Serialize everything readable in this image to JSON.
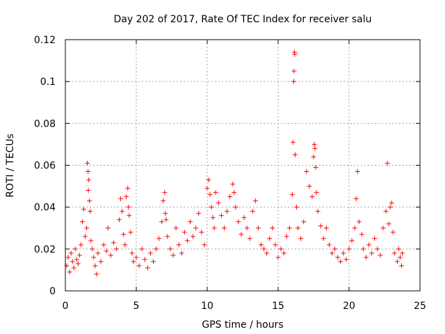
{
  "chart_data": {
    "type": "scatter",
    "title": "Day 202 of 2017, Rate Of TEC Index for receiver salu",
    "xlabel": "GPS time / hours",
    "ylabel": "ROTI / TECUs",
    "xlim": [
      0,
      25
    ],
    "ylim": [
      0,
      0.12
    ],
    "xticks": [
      0,
      5,
      10,
      15,
      20,
      25
    ],
    "xtick_labels": [
      "0",
      "5",
      "10",
      "15",
      "20",
      "25"
    ],
    "yticks": [
      0,
      0.02,
      0.04,
      0.06,
      0.08,
      0.1,
      0.12
    ],
    "ytick_labels": [
      "0",
      "0.02",
      "0.04",
      "0.06",
      "0.08",
      "0.1",
      "0.12"
    ],
    "grid": true,
    "marker": "+",
    "color": "#ff0000",
    "series": [
      {
        "name": "ROTI",
        "points": [
          [
            0.1,
            0.012
          ],
          [
            0.2,
            0.016
          ],
          [
            0.3,
            0.009
          ],
          [
            0.4,
            0.018
          ],
          [
            0.5,
            0.014
          ],
          [
            0.6,
            0.011
          ],
          [
            0.7,
            0.02
          ],
          [
            0.8,
            0.015
          ],
          [
            0.9,
            0.013
          ],
          [
            1.0,
            0.017
          ],
          [
            1.1,
            0.022
          ],
          [
            1.2,
            0.033
          ],
          [
            1.3,
            0.039
          ],
          [
            1.4,
            0.026
          ],
          [
            1.5,
            0.03
          ],
          [
            1.55,
            0.061
          ],
          [
            1.6,
            0.057
          ],
          [
            1.62,
            0.048
          ],
          [
            1.65,
            0.053
          ],
          [
            1.7,
            0.043
          ],
          [
            1.75,
            0.038
          ],
          [
            1.8,
            0.024
          ],
          [
            1.9,
            0.02
          ],
          [
            2.0,
            0.016
          ],
          [
            2.1,
            0.012
          ],
          [
            2.2,
            0.008
          ],
          [
            2.3,
            0.018
          ],
          [
            2.5,
            0.014
          ],
          [
            2.7,
            0.022
          ],
          [
            2.9,
            0.019
          ],
          [
            3.0,
            0.03
          ],
          [
            3.2,
            0.017
          ],
          [
            3.4,
            0.023
          ],
          [
            3.6,
            0.02
          ],
          [
            3.8,
            0.034
          ],
          [
            3.9,
            0.044
          ],
          [
            4.0,
            0.038
          ],
          [
            4.1,
            0.027
          ],
          [
            4.2,
            0.022
          ],
          [
            4.3,
            0.045
          ],
          [
            4.4,
            0.049
          ],
          [
            4.45,
            0.04
          ],
          [
            4.5,
            0.036
          ],
          [
            4.6,
            0.028
          ],
          [
            4.7,
            0.018
          ],
          [
            4.8,
            0.014
          ],
          [
            5.0,
            0.016
          ],
          [
            5.2,
            0.012
          ],
          [
            5.4,
            0.02
          ],
          [
            5.6,
            0.015
          ],
          [
            5.8,
            0.011
          ],
          [
            6.0,
            0.018
          ],
          [
            6.2,
            0.014
          ],
          [
            6.4,
            0.02
          ],
          [
            6.6,
            0.025
          ],
          [
            6.8,
            0.033
          ],
          [
            6.9,
            0.043
          ],
          [
            7.0,
            0.047
          ],
          [
            7.05,
            0.037
          ],
          [
            7.1,
            0.034
          ],
          [
            7.2,
            0.026
          ],
          [
            7.4,
            0.02
          ],
          [
            7.6,
            0.017
          ],
          [
            7.8,
            0.03
          ],
          [
            8.0,
            0.022
          ],
          [
            8.2,
            0.018
          ],
          [
            8.4,
            0.028
          ],
          [
            8.6,
            0.024
          ],
          [
            8.8,
            0.033
          ],
          [
            9.0,
            0.026
          ],
          [
            9.2,
            0.03
          ],
          [
            9.4,
            0.037
          ],
          [
            9.6,
            0.028
          ],
          [
            9.8,
            0.022
          ],
          [
            10.0,
            0.049
          ],
          [
            10.1,
            0.053
          ],
          [
            10.2,
            0.046
          ],
          [
            10.3,
            0.04
          ],
          [
            10.4,
            0.035
          ],
          [
            10.5,
            0.03
          ],
          [
            10.6,
            0.047
          ],
          [
            10.8,
            0.042
          ],
          [
            11.0,
            0.036
          ],
          [
            11.2,
            0.03
          ],
          [
            11.4,
            0.038
          ],
          [
            11.6,
            0.045
          ],
          [
            11.8,
            0.051
          ],
          [
            11.9,
            0.047
          ],
          [
            12.0,
            0.04
          ],
          [
            12.2,
            0.033
          ],
          [
            12.4,
            0.027
          ],
          [
            12.6,
            0.035
          ],
          [
            12.8,
            0.03
          ],
          [
            13.0,
            0.025
          ],
          [
            13.2,
            0.038
          ],
          [
            13.4,
            0.043
          ],
          [
            13.6,
            0.03
          ],
          [
            13.8,
            0.022
          ],
          [
            14.0,
            0.02
          ],
          [
            14.2,
            0.018
          ],
          [
            14.4,
            0.025
          ],
          [
            14.6,
            0.03
          ],
          [
            14.8,
            0.022
          ],
          [
            15.0,
            0.016
          ],
          [
            15.2,
            0.02
          ],
          [
            15.4,
            0.018
          ],
          [
            15.6,
            0.026
          ],
          [
            15.8,
            0.03
          ],
          [
            16.0,
            0.046
          ],
          [
            16.05,
            0.071
          ],
          [
            16.1,
            0.1
          ],
          [
            16.12,
            0.105
          ],
          [
            16.15,
            0.114
          ],
          [
            16.17,
            0.113
          ],
          [
            16.2,
            0.065
          ],
          [
            16.3,
            0.04
          ],
          [
            16.4,
            0.03
          ],
          [
            16.6,
            0.025
          ],
          [
            16.8,
            0.033
          ],
          [
            17.0,
            0.057
          ],
          [
            17.2,
            0.05
          ],
          [
            17.4,
            0.045
          ],
          [
            17.5,
            0.064
          ],
          [
            17.55,
            0.07
          ],
          [
            17.6,
            0.068
          ],
          [
            17.65,
            0.059
          ],
          [
            17.7,
            0.047
          ],
          [
            17.8,
            0.038
          ],
          [
            18.0,
            0.031
          ],
          [
            18.2,
            0.025
          ],
          [
            18.4,
            0.03
          ],
          [
            18.6,
            0.022
          ],
          [
            18.8,
            0.018
          ],
          [
            19.0,
            0.02
          ],
          [
            19.2,
            0.016
          ],
          [
            19.4,
            0.014
          ],
          [
            19.6,
            0.018
          ],
          [
            19.8,
            0.015
          ],
          [
            20.0,
            0.02
          ],
          [
            20.2,
            0.024
          ],
          [
            20.4,
            0.03
          ],
          [
            20.5,
            0.044
          ],
          [
            20.6,
            0.057
          ],
          [
            20.7,
            0.033
          ],
          [
            20.9,
            0.027
          ],
          [
            21.0,
            0.02
          ],
          [
            21.2,
            0.016
          ],
          [
            21.4,
            0.022
          ],
          [
            21.6,
            0.018
          ],
          [
            21.8,
            0.025
          ],
          [
            22.0,
            0.02
          ],
          [
            22.2,
            0.017
          ],
          [
            22.4,
            0.03
          ],
          [
            22.6,
            0.038
          ],
          [
            22.7,
            0.061
          ],
          [
            22.8,
            0.032
          ],
          [
            22.9,
            0.04
          ],
          [
            23.0,
            0.042
          ],
          [
            23.1,
            0.028
          ],
          [
            23.2,
            0.018
          ],
          [
            23.4,
            0.014
          ],
          [
            23.5,
            0.02
          ],
          [
            23.6,
            0.016
          ],
          [
            23.7,
            0.012
          ],
          [
            23.75,
            0.018
          ]
        ]
      }
    ]
  }
}
